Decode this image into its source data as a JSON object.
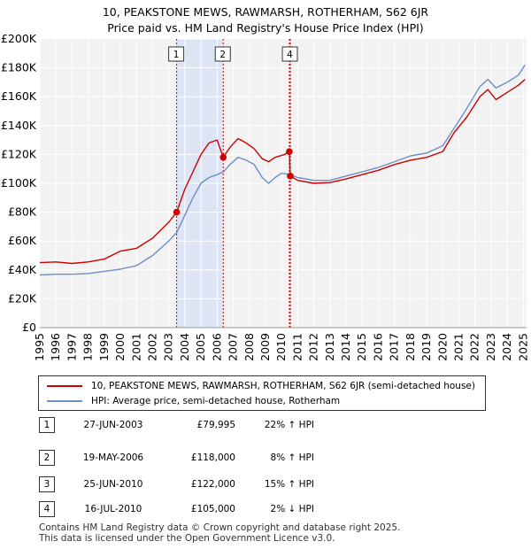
{
  "chart_data": {
    "type": "line",
    "title": "10, PEAKSTONE MEWS, RAWMARSH, ROTHERHAM, S62 6JR",
    "subtitle": "Price paid vs. HM Land Registry's House Price Index (HPI)",
    "xlim": [
      1995,
      2025.2
    ],
    "ylim": [
      0,
      200000
    ],
    "x_ticks": [
      "1995",
      "1996",
      "1997",
      "1998",
      "1999",
      "2000",
      "2001",
      "2002",
      "2003",
      "2004",
      "2005",
      "2006",
      "2007",
      "2008",
      "2009",
      "2010",
      "2011",
      "2012",
      "2013",
      "2014",
      "2015",
      "2016",
      "2017",
      "2018",
      "2019",
      "2020",
      "2021",
      "2022",
      "2023",
      "2024",
      "2025"
    ],
    "y_ticks": [
      {
        "value": 0,
        "label": "£0"
      },
      {
        "value": 20000,
        "label": "£20K"
      },
      {
        "value": 40000,
        "label": "£40K"
      },
      {
        "value": 60000,
        "label": "£60K"
      },
      {
        "value": 80000,
        "label": "£80K"
      },
      {
        "value": 100000,
        "label": "£100K"
      },
      {
        "value": 120000,
        "label": "£120K"
      },
      {
        "value": 140000,
        "label": "£140K"
      },
      {
        "value": 160000,
        "label": "£160K"
      },
      {
        "value": 180000,
        "label": "£180K"
      },
      {
        "value": 200000,
        "label": "£200K"
      }
    ],
    "shaded_periods": [
      [
        2003.49,
        2006.38
      ],
      [
        2010.48,
        2010.54
      ]
    ],
    "series": [
      {
        "name": "10, PEAKSTONE MEWS, RAWMARSH, ROTHERHAM, S62 6JR (semi-detached house)",
        "color": "#cc0000",
        "points": [
          [
            1995,
            45000
          ],
          [
            1996,
            45500
          ],
          [
            1997,
            44500
          ],
          [
            1998,
            45500
          ],
          [
            1999,
            47500
          ],
          [
            2000,
            53000
          ],
          [
            2001,
            55000
          ],
          [
            2002,
            62000
          ],
          [
            2003,
            73000
          ],
          [
            2003.49,
            79995
          ],
          [
            2004,
            96000
          ],
          [
            2004.5,
            108000
          ],
          [
            2005,
            120000
          ],
          [
            2005.5,
            128000
          ],
          [
            2006,
            130000
          ],
          [
            2006.38,
            118000
          ],
          [
            2006.8,
            125000
          ],
          [
            2007.3,
            131000
          ],
          [
            2007.8,
            128000
          ],
          [
            2008.3,
            124000
          ],
          [
            2008.8,
            117000
          ],
          [
            2009.2,
            115000
          ],
          [
            2009.6,
            118000
          ],
          [
            2010.2,
            120000
          ],
          [
            2010.48,
            122000
          ],
          [
            2010.54,
            105000
          ],
          [
            2011,
            102000
          ],
          [
            2012,
            100000
          ],
          [
            2013,
            100500
          ],
          [
            2014,
            103000
          ],
          [
            2015,
            106000
          ],
          [
            2016,
            109000
          ],
          [
            2017,
            113000
          ],
          [
            2018,
            116000
          ],
          [
            2019,
            118000
          ],
          [
            2020,
            122000
          ],
          [
            2020.7,
            135000
          ],
          [
            2021.5,
            146000
          ],
          [
            2022.3,
            160000
          ],
          [
            2022.8,
            165000
          ],
          [
            2023.3,
            158000
          ],
          [
            2024,
            163000
          ],
          [
            2024.7,
            168000
          ],
          [
            2025.1,
            172000
          ]
        ]
      },
      {
        "name": "HPI: Average price, semi-detached house, Rotherham",
        "color": "#6b8fc7",
        "points": [
          [
            1995,
            36500
          ],
          [
            1996,
            37000
          ],
          [
            1997,
            37000
          ],
          [
            1998,
            37500
          ],
          [
            1999,
            39000
          ],
          [
            2000,
            40500
          ],
          [
            2001,
            43000
          ],
          [
            2002,
            50000
          ],
          [
            2003,
            60000
          ],
          [
            2003.5,
            66000
          ],
          [
            2004,
            78000
          ],
          [
            2004.5,
            90000
          ],
          [
            2005,
            100000
          ],
          [
            2005.5,
            104000
          ],
          [
            2006,
            106000
          ],
          [
            2006.4,
            108000
          ],
          [
            2006.8,
            113000
          ],
          [
            2007.3,
            118000
          ],
          [
            2007.8,
            116000
          ],
          [
            2008.3,
            113000
          ],
          [
            2008.8,
            104000
          ],
          [
            2009.2,
            100000
          ],
          [
            2009.6,
            104000
          ],
          [
            2010,
            107000
          ],
          [
            2010.5,
            106000
          ],
          [
            2011,
            104000
          ],
          [
            2012,
            102000
          ],
          [
            2013,
            102000
          ],
          [
            2014,
            105000
          ],
          [
            2015,
            108000
          ],
          [
            2016,
            111000
          ],
          [
            2017,
            115000
          ],
          [
            2018,
            119000
          ],
          [
            2019,
            121000
          ],
          [
            2020,
            126000
          ],
          [
            2020.7,
            138000
          ],
          [
            2021.5,
            152000
          ],
          [
            2022.3,
            167000
          ],
          [
            2022.8,
            172000
          ],
          [
            2023.3,
            166000
          ],
          [
            2024,
            170000
          ],
          [
            2024.7,
            175000
          ],
          [
            2025.1,
            182000
          ]
        ]
      }
    ],
    "sales": [
      {
        "num": "1",
        "x": 2003.49,
        "y": 79995,
        "date": "27-JUN-2003",
        "price": "£79,995",
        "hpi": "22% ↑ HPI"
      },
      {
        "num": "2",
        "x": 2006.38,
        "y": 118000,
        "date": "19-MAY-2006",
        "price": "£118,000",
        "hpi": "8% ↑ HPI"
      },
      {
        "num": "3",
        "x": 2010.48,
        "y": 122000,
        "date": "25-JUN-2010",
        "price": "£122,000",
        "hpi": "15% ↑ HPI"
      },
      {
        "num": "4",
        "x": 2010.54,
        "y": 105000,
        "date": "16-JUL-2010",
        "price": "£105,000",
        "hpi": "2% ↓ HPI"
      }
    ],
    "visible_labels": [
      "1",
      "2",
      "4"
    ],
    "colors": {
      "grid": "#dddddd",
      "shade": "#dde4f3",
      "axis_bg": "#f2f2f2",
      "vline": "#cc0000"
    }
  },
  "legend": {
    "property_label": "10, PEAKSTONE MEWS, RAWMARSH, ROTHERHAM, S62 6JR (semi-detached house)",
    "hpi_label": "HPI: Average price, semi-detached house, Rotherham"
  },
  "footer": {
    "line1": "Contains HM Land Registry data © Crown copyright and database right 2025.",
    "line2": "This data is licensed under the Open Government Licence v3.0."
  }
}
